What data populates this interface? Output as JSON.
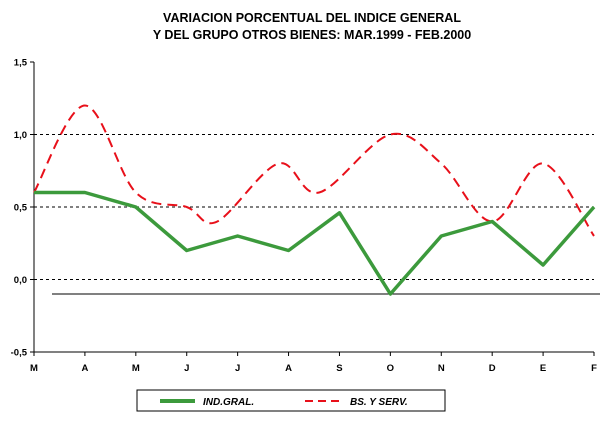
{
  "chart_data": {
    "type": "line",
    "title_lines": [
      "VARIACION PORCENTUAL DEL INDICE GENERAL",
      "Y DEL GRUPO OTROS BIENES: MAR.1999 -  FEB.2000"
    ],
    "categories": [
      "M",
      "A",
      "M",
      "J",
      "J",
      "A",
      "S",
      "O",
      "N",
      "D",
      "E",
      "F"
    ],
    "ylim": [
      -0.5,
      1.5
    ],
    "yticks": [
      -0.5,
      0.0,
      0.5,
      1.0,
      1.5
    ],
    "ytick_labels": [
      "-0,5",
      "0,0",
      "0,5",
      "1,0",
      "1,5"
    ],
    "dashed_gridlines": [
      0.0,
      0.5,
      1.0
    ],
    "reference_line": -0.1,
    "legend_position": "bottom",
    "series": [
      {
        "name": "IND.GRAL.",
        "style": "solid",
        "color": "#3c9a3c",
        "values": [
          0.6,
          0.6,
          0.5,
          0.2,
          0.3,
          0.2,
          0.46,
          -0.1,
          0.3,
          0.4,
          0.1,
          0.5
        ]
      },
      {
        "name": "BS. Y SERV.",
        "style": "dashed",
        "color": "#e8101a",
        "smooth": true,
        "x_positions": [
          0,
          1,
          2,
          3,
          3.6,
          4.8,
          5.6,
          7,
          8,
          9,
          10,
          11
        ],
        "values": [
          0.6,
          1.2,
          0.6,
          0.5,
          0.4,
          0.8,
          0.6,
          1.0,
          0.8,
          0.4,
          0.8,
          0.3
        ]
      }
    ]
  }
}
